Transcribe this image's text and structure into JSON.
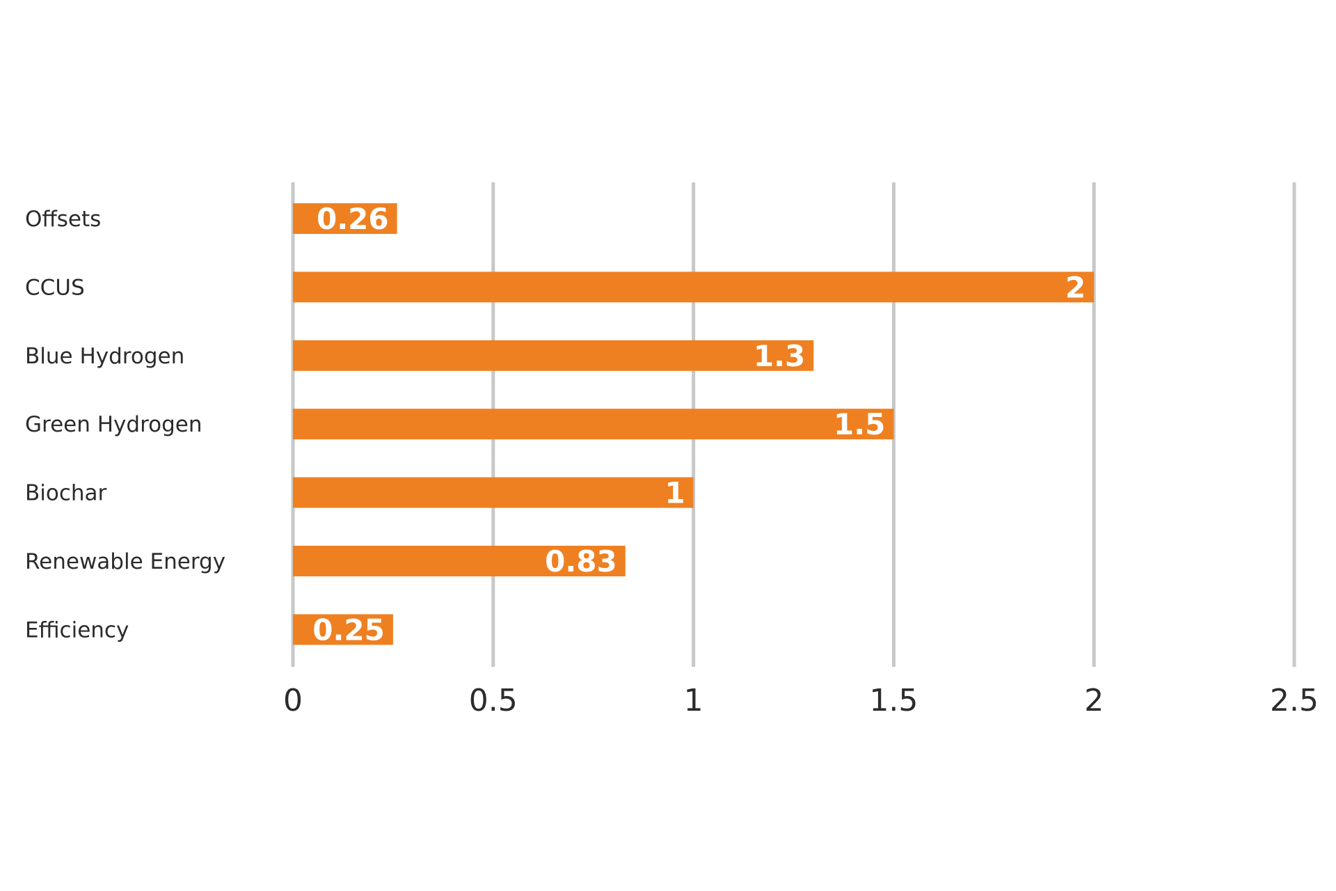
{
  "chart_data": {
    "type": "bar",
    "orientation": "horizontal",
    "title": "",
    "xlabel": "",
    "ylabel": "",
    "categories": [
      "Offsets",
      "CCUS",
      "Blue Hydrogen",
      "Green Hydrogen",
      "Biochar",
      "Renewable Energy",
      "Efficiency"
    ],
    "values": [
      0.26,
      2,
      1.3,
      1.5,
      1,
      0.83,
      0.25
    ],
    "data_labels": [
      "0.26",
      "2",
      "1.3",
      "1.5",
      "1",
      "0.83",
      "0.25"
    ],
    "xlim": [
      0,
      2.5
    ],
    "x_ticks": [
      0,
      0.5,
      1,
      1.5,
      2,
      2.5
    ],
    "x_tick_labels": [
      "0",
      "0.5",
      "1",
      "1.5",
      "2",
      "2.5"
    ],
    "grid": "vertical",
    "legend": "none",
    "colors": {
      "bar": "#EE8021",
      "grid": "#C8C8C8",
      "data_label": "#FFFFFF",
      "text": "#2B2B2B",
      "background": "#FFFFFF"
    }
  }
}
